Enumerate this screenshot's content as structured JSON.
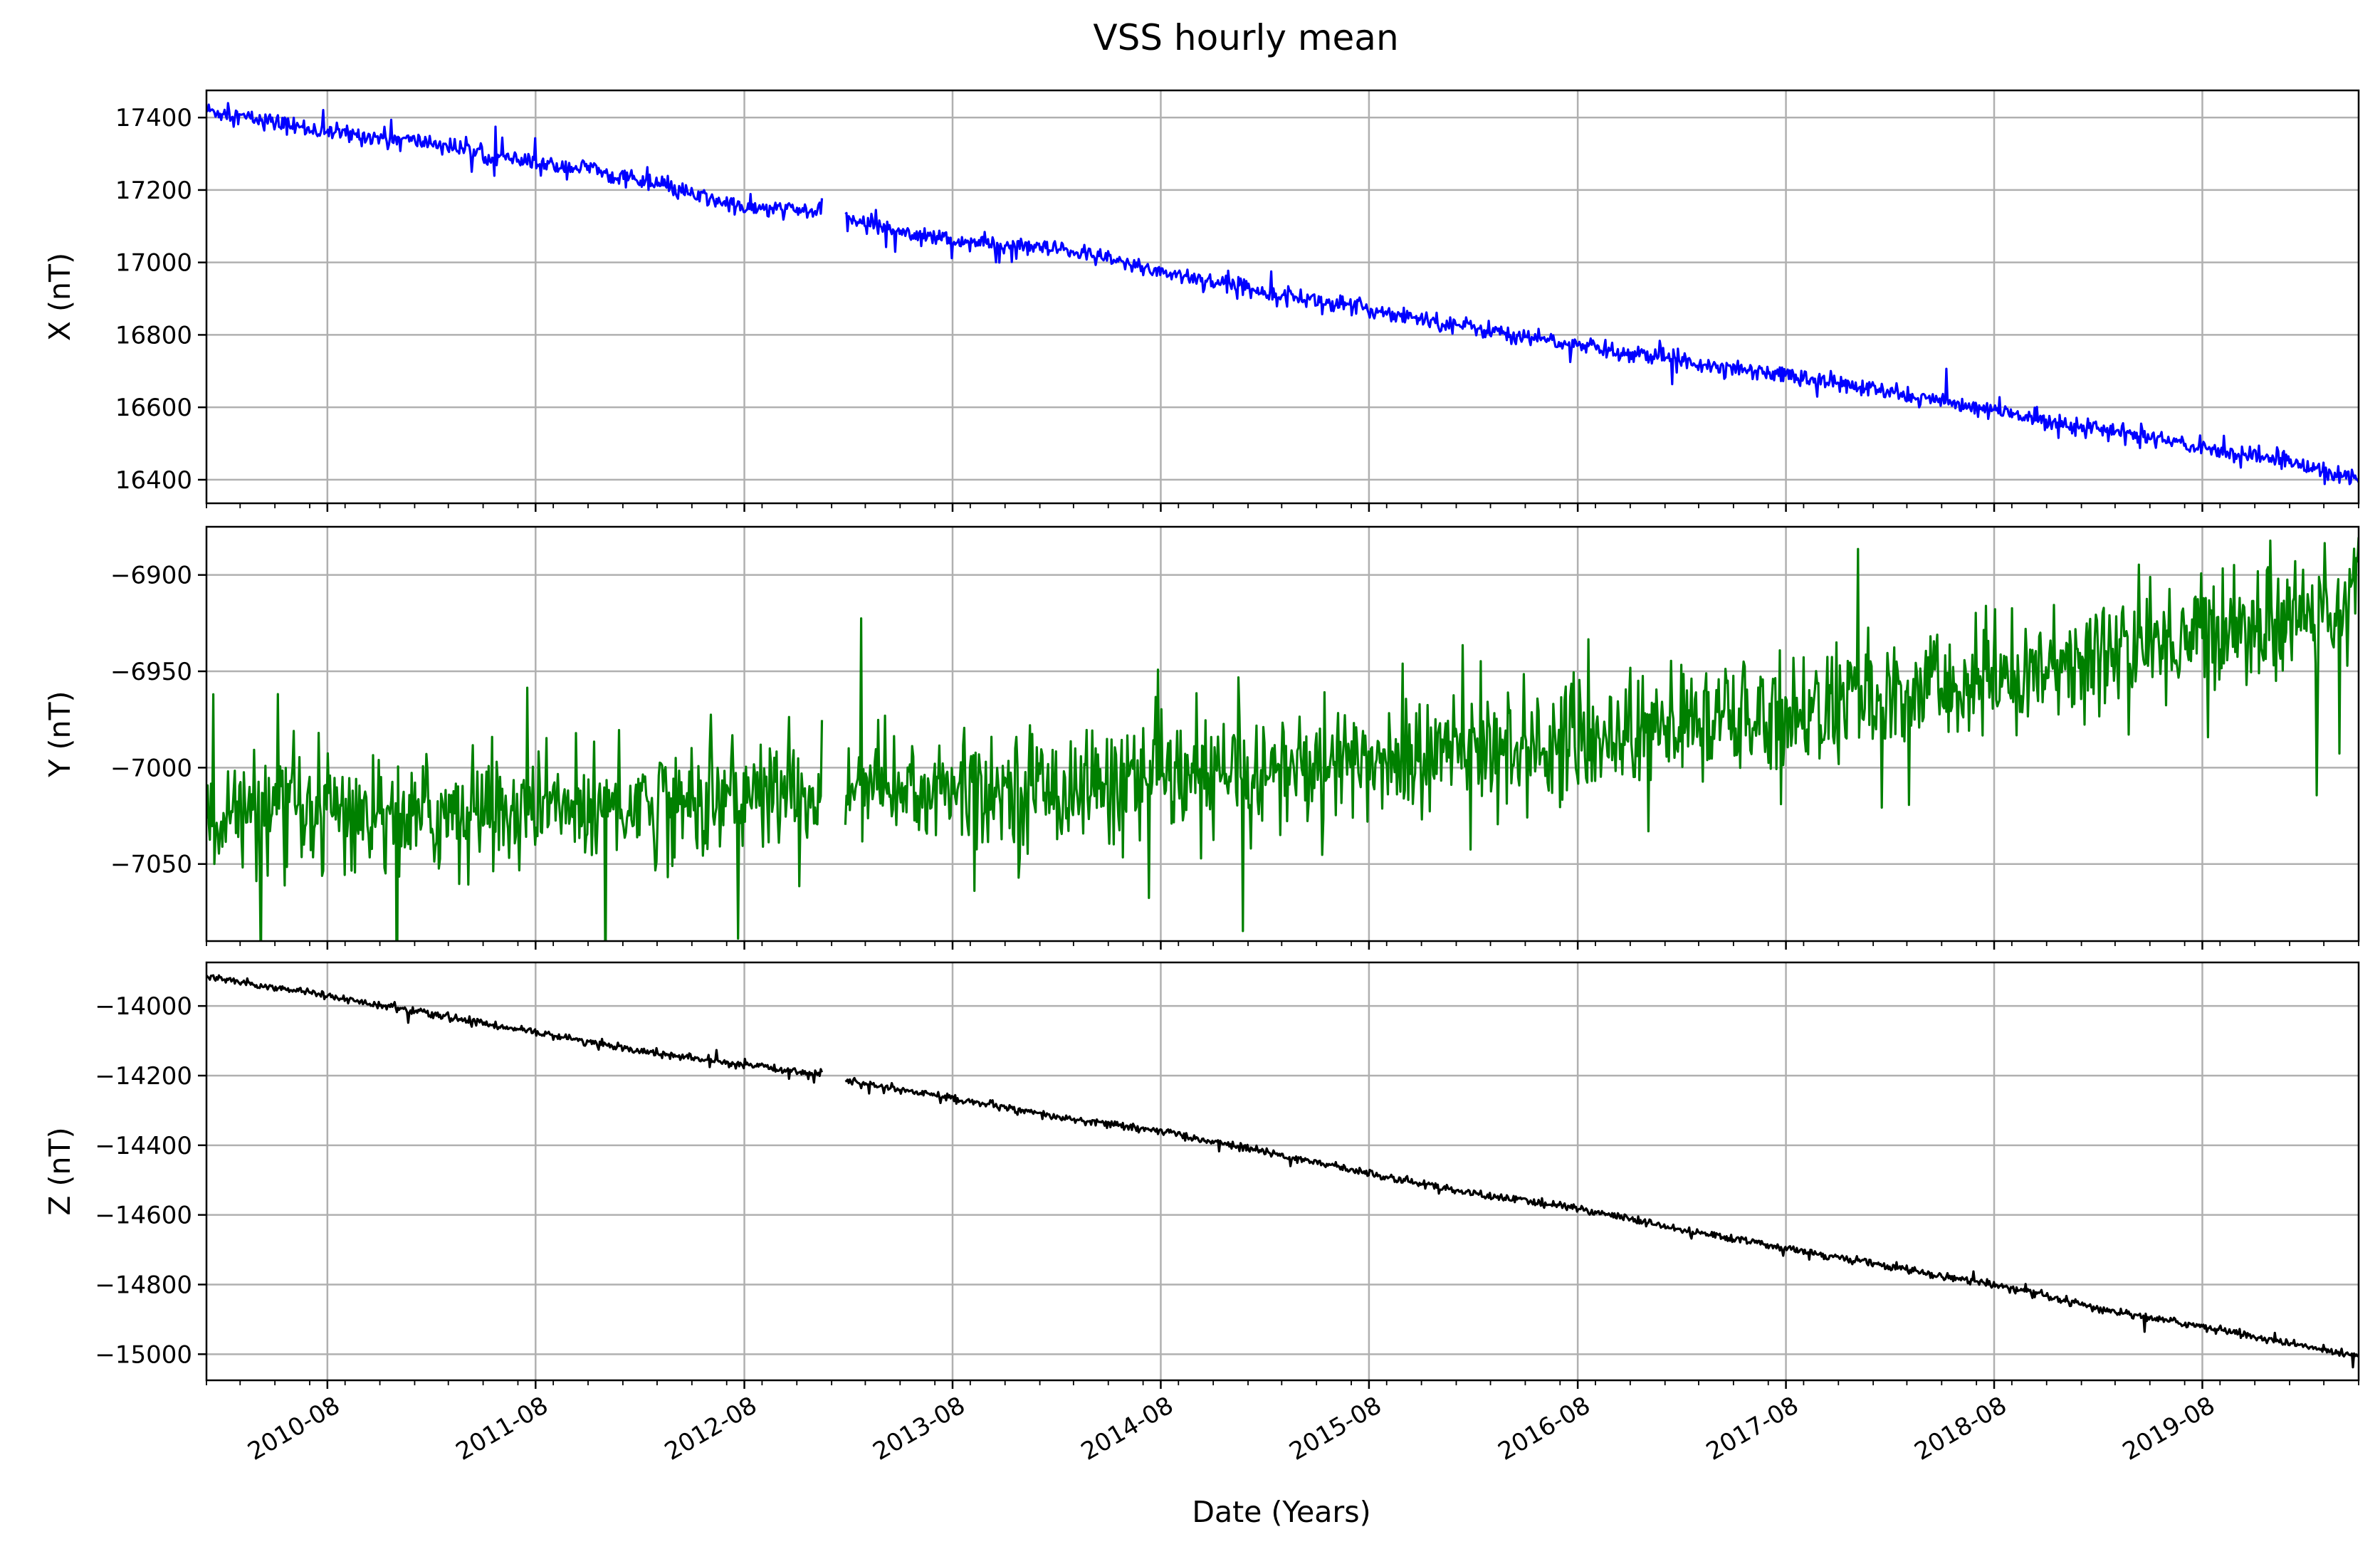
{
  "chart_data": {
    "type": "line",
    "title": "VSS hourly mean",
    "xlabel": "Date (Years)",
    "x_range": [
      "2010-01-01",
      "2020-05-01"
    ],
    "x_ticks": [
      "2010-08",
      "2011-08",
      "2012-08",
      "2013-08",
      "2014-08",
      "2015-08",
      "2016-08",
      "2017-08",
      "2018-08",
      "2019-08"
    ],
    "grid": true,
    "data_gap": [
      "2012-12-15",
      "2013-01-25"
    ],
    "panels": [
      {
        "ylabel": "X (nT)",
        "color": "#0000ff",
        "ylim": [
          16335,
          17475
        ],
        "yticks": [
          "16400",
          "16600",
          "16800",
          "17000",
          "17200",
          "17400"
        ],
        "ytick_values": [
          16400,
          16600,
          16800,
          17000,
          17200,
          17400
        ],
        "noise": 22,
        "series": [
          {
            "x": "2010-01-01",
            "y": 17420
          },
          {
            "x": "2010-08-01",
            "y": 17360
          },
          {
            "x": "2011-02-01",
            "y": 17330
          },
          {
            "x": "2011-08-01",
            "y": 17270
          },
          {
            "x": "2011-11-01",
            "y": 17260
          },
          {
            "x": "2012-04-01",
            "y": 17200
          },
          {
            "x": "2012-08-01",
            "y": 17150
          },
          {
            "x": "2012-12-15",
            "y": 17140
          },
          {
            "x": "2013-01-25",
            "y": 17120
          },
          {
            "x": "2013-08-01",
            "y": 17060
          },
          {
            "x": "2014-03-01",
            "y": 17030
          },
          {
            "x": "2014-08-01",
            "y": 16975
          },
          {
            "x": "2015-02-01",
            "y": 16920
          },
          {
            "x": "2015-08-01",
            "y": 16870
          },
          {
            "x": "2016-02-01",
            "y": 16820
          },
          {
            "x": "2016-08-01",
            "y": 16770
          },
          {
            "x": "2017-02-01",
            "y": 16730
          },
          {
            "x": "2017-08-01",
            "y": 16690
          },
          {
            "x": "2018-02-01",
            "y": 16640
          },
          {
            "x": "2018-08-01",
            "y": 16590
          },
          {
            "x": "2019-02-01",
            "y": 16540
          },
          {
            "x": "2019-08-01",
            "y": 16490
          },
          {
            "x": "2020-01-01",
            "y": 16450
          },
          {
            "x": "2020-05-01",
            "y": 16400
          }
        ]
      },
      {
        "ylabel": "Y (nT)",
        "color": "#008000",
        "ylim": [
          -7090,
          -6875
        ],
        "yticks": [
          "−7050",
          "−7000",
          "−6950",
          "−6900"
        ],
        "ytick_values": [
          -7050,
          -7000,
          -6950,
          -6900
        ],
        "noise": 28,
        "series": [
          {
            "x": "2010-01-01",
            "y": -7025
          },
          {
            "x": "2010-08-01",
            "y": -7025
          },
          {
            "x": "2011-08-01",
            "y": -7022
          },
          {
            "x": "2012-08-01",
            "y": -7015
          },
          {
            "x": "2012-12-15",
            "y": -7012
          },
          {
            "x": "2013-01-25",
            "y": -7012
          },
          {
            "x": "2013-08-01",
            "y": -7012
          },
          {
            "x": "2014-08-01",
            "y": -7008
          },
          {
            "x": "2015-08-01",
            "y": -6997
          },
          {
            "x": "2016-08-01",
            "y": -6985
          },
          {
            "x": "2017-08-01",
            "y": -6972
          },
          {
            "x": "2018-08-01",
            "y": -6955
          },
          {
            "x": "2019-08-01",
            "y": -6930
          },
          {
            "x": "2020-05-01",
            "y": -6915
          }
        ]
      },
      {
        "ylabel": "Z (nT)",
        "color": "#000000",
        "ylim": [
          -15075,
          -13875
        ],
        "yticks": [
          "−15000",
          "−14800",
          "−14600",
          "−14400",
          "−14200",
          "−14000"
        ],
        "ytick_values": [
          -15000,
          -14800,
          -14600,
          -14400,
          -14200,
          -14000
        ],
        "noise": 10,
        "series": [
          {
            "x": "2010-01-01",
            "y": -13915
          },
          {
            "x": "2010-08-01",
            "y": -13970
          },
          {
            "x": "2011-02-01",
            "y": -14025
          },
          {
            "x": "2011-08-01",
            "y": -14075
          },
          {
            "x": "2012-02-01",
            "y": -14130
          },
          {
            "x": "2012-08-01",
            "y": -14170
          },
          {
            "x": "2012-12-15",
            "y": -14195
          },
          {
            "x": "2013-01-25",
            "y": -14215
          },
          {
            "x": "2013-08-01",
            "y": -14265
          },
          {
            "x": "2014-02-01",
            "y": -14320
          },
          {
            "x": "2014-08-01",
            "y": -14360
          },
          {
            "x": "2015-02-01",
            "y": -14420
          },
          {
            "x": "2015-08-01",
            "y": -14480
          },
          {
            "x": "2016-02-01",
            "y": -14540
          },
          {
            "x": "2016-08-01",
            "y": -14580
          },
          {
            "x": "2017-02-01",
            "y": -14645
          },
          {
            "x": "2017-08-01",
            "y": -14695
          },
          {
            "x": "2018-02-01",
            "y": -14750
          },
          {
            "x": "2018-08-01",
            "y": -14800
          },
          {
            "x": "2019-02-01",
            "y": -14870
          },
          {
            "x": "2019-08-01",
            "y": -14920
          },
          {
            "x": "2020-01-01",
            "y": -14970
          },
          {
            "x": "2020-05-01",
            "y": -15005
          }
        ]
      }
    ]
  }
}
